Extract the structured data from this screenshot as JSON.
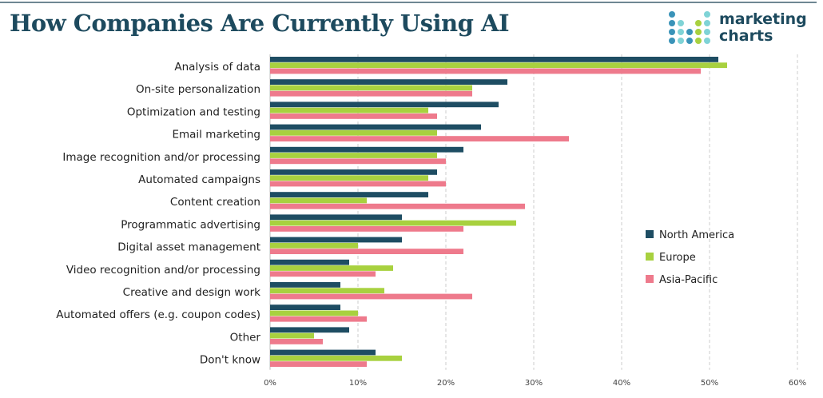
{
  "title": "How Companies Are Currently Using AI",
  "logo": {
    "line1": "marketing",
    "line2": "charts"
  },
  "colors": {
    "North America": "#1e4d63",
    "Europe": "#a8d13f",
    "Asia-Pacific": "#ee7a8c",
    "title": "#1d4a5e"
  },
  "chart_data": {
    "type": "bar",
    "orientation": "horizontal",
    "title": "How Companies Are Currently Using AI",
    "categories": [
      "Analysis of data",
      "On-site personalization",
      "Optimization and testing",
      "Email marketing",
      "Image recognition and/or processing",
      "Automated campaigns",
      "Content creation",
      "Programmatic advertising",
      "Digital asset management",
      "Video recognition and/or processing",
      "Creative and design work",
      "Automated offers (e.g. coupon codes)",
      "Other",
      "Don't know"
    ],
    "series": [
      {
        "name": "North America",
        "values": [
          51,
          27,
          26,
          24,
          22,
          19,
          18,
          15,
          15,
          9,
          8,
          8,
          9,
          12
        ]
      },
      {
        "name": "Europe",
        "values": [
          52,
          23,
          18,
          19,
          19,
          18,
          11,
          28,
          10,
          14,
          13,
          10,
          5,
          15
        ]
      },
      {
        "name": "Asia-Pacific",
        "values": [
          49,
          23,
          19,
          34,
          20,
          20,
          29,
          22,
          22,
          12,
          23,
          11,
          6,
          11
        ]
      }
    ],
    "xlim": [
      0,
      60
    ],
    "xticks": [
      "0%",
      "10%",
      "20%",
      "30%",
      "40%",
      "50%",
      "60%"
    ],
    "grid": true,
    "legend": "right"
  }
}
